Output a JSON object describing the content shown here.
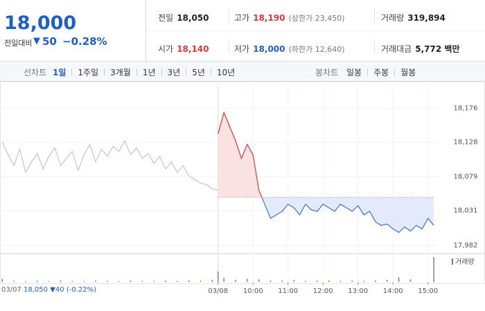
{
  "header": {
    "price": "18,000",
    "change_label": "전일대비",
    "change_arrow": "▼",
    "change": "50",
    "change_pct": "−0.28%",
    "stats": [
      {
        "label": "전일",
        "value": "18,050"
      },
      {
        "label": "고가",
        "value": "18,190",
        "note": "(상한가 23,450)"
      },
      {
        "label": "거래량",
        "value": "319,894"
      },
      {
        "label": "시가",
        "value": "18,140"
      },
      {
        "label": "저가",
        "value": "18,000",
        "note": "(하한가 12,640)"
      },
      {
        "label": "거래대금",
        "value": "5,772 백만"
      }
    ]
  },
  "tabs": {
    "line_label": "선차트",
    "line_tabs": [
      "1일",
      "1주일",
      "3개월",
      "1년",
      "3년",
      "5년",
      "10년"
    ],
    "candle_label": "봉차트",
    "candle_tabs": [
      "일봉",
      "주봉",
      "월봉"
    ]
  },
  "caption": {
    "date": "03/07",
    "price": "18,050",
    "change": "▼40",
    "pct": "(-0.22%)"
  },
  "chart_data": {
    "type": "line",
    "xlim": [
      -374,
      377
    ],
    "xticks": [
      {
        "value": 0,
        "label": "03/08"
      },
      {
        "value": 60,
        "label": "10:00"
      },
      {
        "value": 120,
        "label": "11:00"
      },
      {
        "value": 180,
        "label": "12:00"
      },
      {
        "value": 240,
        "label": "13:00"
      },
      {
        "value": 300,
        "label": "14:00"
      },
      {
        "value": 360,
        "label": "15:00"
      }
    ],
    "ylim": [
      17972,
      18207
    ],
    "yticks": [
      {
        "value": 17982,
        "label": "17,982"
      },
      {
        "value": 18031,
        "label": "18,031"
      },
      {
        "value": 18079,
        "label": "18,079"
      },
      {
        "value": 18128,
        "label": "18,128"
      },
      {
        "value": 18176,
        "label": "18,176"
      }
    ],
    "baseline": 18050,
    "series": [
      {
        "color": "#c4c4c4",
        "x": [
          -370,
          -360,
          -350,
          -340,
          -330,
          -320,
          -310,
          -300,
          -290,
          -280,
          -270,
          -260,
          -250,
          -240,
          -230,
          -220,
          -210,
          -200,
          -190,
          -180,
          -170,
          -160,
          -150,
          -140,
          -130,
          -120,
          -110,
          -100,
          -90,
          -80,
          -70,
          -60,
          -50,
          -40,
          -30,
          -20,
          -10,
          0
        ],
        "values": [
          18128,
          18110,
          18095,
          18118,
          18085,
          18100,
          18112,
          18090,
          18108,
          18120,
          18095,
          18105,
          18115,
          18088,
          18110,
          18125,
          18100,
          18118,
          18108,
          18122,
          18115,
          18130,
          18110,
          18120,
          18105,
          18112,
          18098,
          18108,
          18090,
          18100,
          18085,
          18095,
          18080,
          18075,
          18070,
          18068,
          18062,
          18060
        ]
      },
      {
        "color": "#e0353b",
        "down_color": "#3a6fd0",
        "fill_color": "#fbe2e2",
        "down_fill_color": "#e3ebfa",
        "x": [
          0,
          10,
          20,
          30,
          40,
          50,
          60,
          70,
          80,
          90,
          100,
          110,
          120,
          130,
          140,
          150,
          160,
          170,
          180,
          190,
          200,
          210,
          220,
          230,
          240,
          250,
          260,
          270,
          280,
          290,
          300,
          310,
          320,
          330,
          340,
          350,
          360,
          370
        ],
        "values": [
          18140,
          18170,
          18150,
          18130,
          18105,
          18125,
          18110,
          18060,
          18040,
          18020,
          18025,
          18030,
          18040,
          18035,
          18025,
          18040,
          18032,
          18030,
          18040,
          18035,
          18030,
          18040,
          18035,
          18030,
          18038,
          18025,
          18030,
          18015,
          18010,
          18012,
          18005,
          18000,
          18008,
          18002,
          18010,
          18005,
          18020,
          18010
        ]
      }
    ],
    "volume": {
      "name": "거래량",
      "color": "#7a6cc2",
      "vlim": [
        0,
        100
      ],
      "x": [
        -370,
        -350,
        -330,
        -310,
        -290,
        -270,
        -250,
        -230,
        -210,
        -190,
        -170,
        -150,
        -130,
        -110,
        -90,
        -70,
        -50,
        -30,
        -10,
        0,
        10,
        30,
        50,
        70,
        90,
        110,
        130,
        150,
        170,
        190,
        210,
        230,
        250,
        270,
        290,
        310,
        330,
        370
      ],
      "values": [
        12,
        4,
        3,
        5,
        3,
        6,
        4,
        3,
        5,
        4,
        3,
        6,
        4,
        3,
        5,
        4,
        6,
        5,
        8,
        40,
        15,
        8,
        12,
        10,
        6,
        5,
        7,
        4,
        5,
        6,
        4,
        5,
        4,
        6,
        8,
        18,
        10,
        95
      ]
    }
  }
}
